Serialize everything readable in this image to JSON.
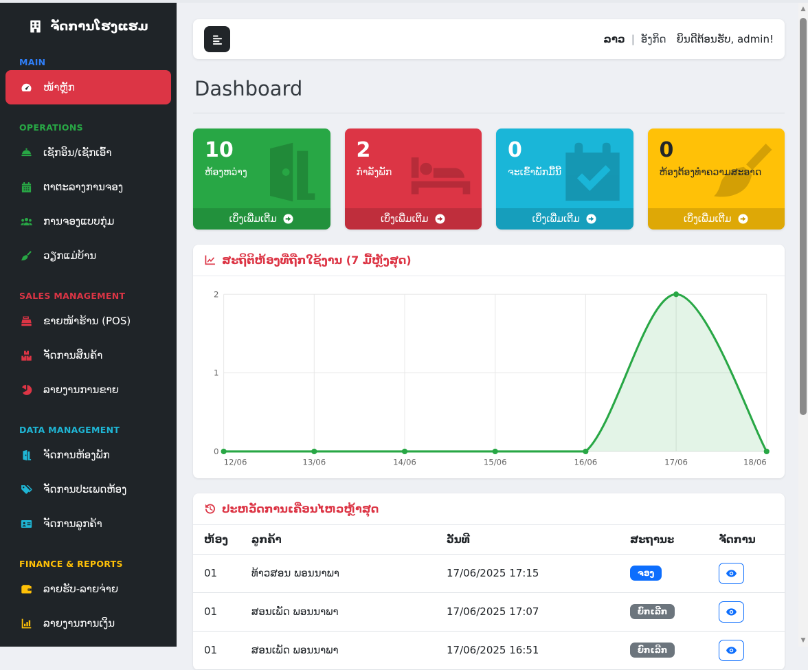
{
  "topbar": {
    "toggle_icon": "menu-toggle-icon",
    "lang_primary": "ລາວ",
    "lang_separator": "|",
    "lang_secondary": "ອັງກິດ",
    "welcome": "ຍິນດີຕ້ອນຮັບ, admin!"
  },
  "page": {
    "title": "Dashboard"
  },
  "sidebar": {
    "brand": {
      "icon": "hotel-icon",
      "label": "ຈັດການໂຮງແຮມ"
    },
    "active_item_color": "#dc3545",
    "sections": [
      {
        "label": "MAIN",
        "color": "#2f7ef7",
        "items": [
          {
            "icon": "speedometer-icon",
            "label": "ໜ້າຫຼັກ",
            "active": true
          }
        ]
      },
      {
        "label": "OPERATIONS",
        "color": "#28a745",
        "items": [
          {
            "icon": "concierge-bell-icon",
            "label": "ເຊັກອິນ/ເຊັກເອົ້າ"
          },
          {
            "icon": "calendar-icon",
            "label": "ຕາຕະລາງການຈອງ"
          },
          {
            "icon": "users-icon",
            "label": "ການຈອງແບບກຸ່ມ"
          },
          {
            "icon": "broom-icon",
            "label": "ວຽກແມ່ບ້ານ"
          }
        ]
      },
      {
        "label": "SALES MANAGEMENT",
        "color": "#dc3545",
        "items": [
          {
            "icon": "cash-register-icon",
            "label": "ຂາຍໜ້າຮ້ານ (POS)"
          },
          {
            "icon": "boxes-icon",
            "label": "ຈັດການສິນຄ້າ"
          },
          {
            "icon": "pie-chart-icon",
            "label": "ລາຍງານການຂາຍ"
          }
        ]
      },
      {
        "label": "DATA MANAGEMENT",
        "color": "#1fb5d4",
        "items": [
          {
            "icon": "door-open-icon",
            "label": "ຈັດການຫ້ອງພັກ"
          },
          {
            "icon": "tags-icon",
            "label": "ຈັດການປະເພດຫ້ອງ"
          },
          {
            "icon": "id-card-icon",
            "label": "ຈັດການລູກຄ້າ"
          }
        ]
      },
      {
        "label": "FINANCE & REPORTS",
        "color": "#ffc107",
        "items": [
          {
            "icon": "wallet-icon",
            "label": "ລາຍຮັບ-ລາຍຈ່າຍ"
          },
          {
            "icon": "chart-bar-icon",
            "label": "ລາຍງານການເງິນ"
          }
        ]
      }
    ]
  },
  "stat_cards": [
    {
      "value": "10",
      "label": "ຫ້ອງຫວ່າງ",
      "color": "#28a745",
      "text_color": "#ffffff",
      "icon": "door-open-icon",
      "more_label": "ເບິ່ງເພີ່ມເຕີມ",
      "more_icon": "arrow-circle-right-icon"
    },
    {
      "value": "2",
      "label": "ກຳລັງພັກ",
      "color": "#dc3545",
      "text_color": "#ffffff",
      "icon": "bed-icon",
      "more_label": "ເບິ່ງເພີ່ມເຕີມ",
      "more_icon": "arrow-circle-right-icon"
    },
    {
      "value": "0",
      "label": "ຈະເຂົ້າພັກມື້ນີ້",
      "color": "#1ab6d8",
      "text_color": "#ffffff",
      "icon": "calendar-check-icon",
      "more_label": "ເບິ່ງເພີ່ມເຕີມ",
      "more_icon": "arrow-circle-right-icon"
    },
    {
      "value": "0",
      "label": "ຫ້ອງຕ້ອງທຳຄວາມສະອາດ",
      "color": "#ffc107",
      "text_color": "#212529",
      "icon": "broom-icon",
      "more_label": "ເບິ່ງເພີ່ມເຕີມ",
      "more_icon": "arrow-circle-right-icon"
    }
  ],
  "chart_card": {
    "icon": "chart-line-icon",
    "title": "ສະຖິຕິຫ້ອງທີ່ຖືກໃຊ້ງານ (7 ມື້ຫຼັງສຸດ)"
  },
  "chart_data": {
    "type": "line",
    "x": [
      "12/06",
      "13/06",
      "14/06",
      "15/06",
      "16/06",
      "17/06",
      "18/06"
    ],
    "values": [
      0,
      0,
      0,
      0,
      0,
      2,
      0
    ],
    "yticks": [
      0,
      1,
      2
    ],
    "ylim": [
      0,
      2
    ],
    "line_color": "#28a745",
    "fill_color": "rgba(40,167,69,0.13)",
    "grid": true,
    "legend": "none",
    "smooth": true
  },
  "activity": {
    "icon": "history-icon",
    "title": "ປະຫວັດການເຄື່ອນໄຫວຫຼ້າສຸດ",
    "columns": [
      "ຫ້ອງ",
      "ລູກຄ້າ",
      "ວັນທີ",
      "ສະຖານະ",
      "ຈັດການ"
    ],
    "action_icon": "eye-icon",
    "rows": [
      {
        "room": "01",
        "customer": "ທ້າວສອນ ພອນນາພາ",
        "date": "17/06/2025 17:15",
        "status": "ຈອງ",
        "status_color": "#0d6efd"
      },
      {
        "room": "01",
        "customer": "ສອນເພັດ ພອນນາພາ",
        "date": "17/06/2025 17:07",
        "status": "ຍົກເລີກ",
        "status_color": "#6c757d"
      },
      {
        "room": "01",
        "customer": "ສອນເພັດ ພອນນາພາ",
        "date": "17/06/2025 16:51",
        "status": "ຍົກເລີກ",
        "status_color": "#6c757d"
      }
    ]
  },
  "scrollbar": {
    "up_glyph": "▲",
    "down_glyph": "▼"
  }
}
